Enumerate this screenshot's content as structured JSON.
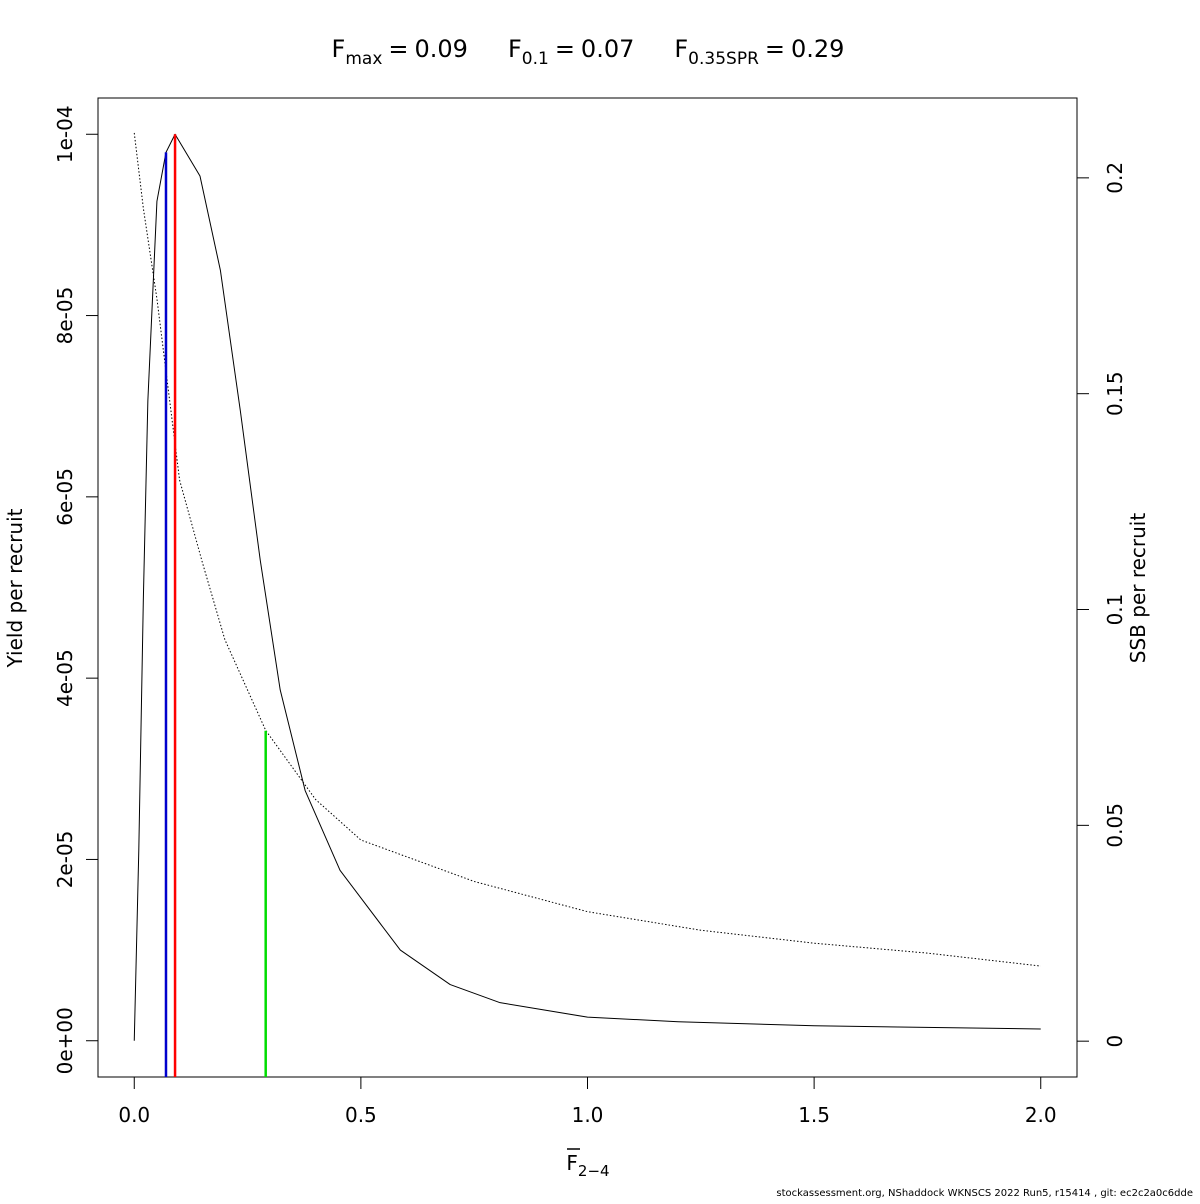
{
  "chart_data": {
    "type": "line",
    "reference_lines": [
      {
        "symbol": "F",
        "subscript": "max",
        "sign": "=",
        "value": 0.09,
        "color": "#ff0000",
        "top": 0.0001
      },
      {
        "symbol": "F",
        "subscript": "0.1",
        "sign": "=",
        "value": 0.07,
        "color": "#0000cd",
        "top": 9.8e-05
      },
      {
        "symbol": "F",
        "subscript": "0.35SPR",
        "sign": "=",
        "value": 0.29,
        "color": "#00dd00",
        "top": 3.42e-05
      }
    ],
    "xlabel": {
      "symbol": "F",
      "subscript": "2−4"
    },
    "ylabel": "Yield per recruit",
    "y2label": "SSB per recruit",
    "footer": "stockassessment.org, NShaddock  WKNSCS  2022  Run5, r15414 , git: ec2c2a0c6dde",
    "xlim": [
      -0.08,
      2.08
    ],
    "ylim": [
      -4e-06,
      0.000104
    ],
    "y2lim": [
      -0.0083,
      0.2185
    ],
    "xticks": [
      {
        "value": 0,
        "label": "0.0"
      },
      0.5,
      {
        "value": 1,
        "label": "1.0"
      },
      1.5,
      {
        "value": 2,
        "label": "2.0"
      }
    ],
    "yticks": [
      {
        "value": 0,
        "label": "0e+00"
      },
      {
        "value": 2e-05,
        "label": "2e-05"
      },
      {
        "value": 4e-05,
        "label": "4e-05"
      },
      {
        "value": 6e-05,
        "label": "6e-05"
      },
      {
        "value": 8e-05,
        "label": "8e-05"
      },
      {
        "value": 0.0001,
        "label": "1e-04"
      }
    ],
    "y2ticks": [
      0,
      0.05,
      0.1,
      0.15,
      0.2
    ],
    "series": [
      {
        "color": "#000000",
        "line_style": "solid",
        "x": [
          0,
          0.01,
          0.02,
          0.03,
          0.05,
          0.07,
          0.09,
          0.145,
          0.19,
          0.234,
          0.278,
          0.322,
          0.377,
          0.454,
          0.587,
          0.697,
          0.807,
          1.0,
          1.2,
          1.5,
          2.0
        ],
        "values": [
          0,
          2.1e-05,
          4.86e-05,
          7.06e-05,
          9.26e-05,
          9.8e-05,
          0.0001,
          9.54e-05,
          8.5e-05,
          6.95e-05,
          5.3e-05,
          3.87e-05,
          2.76e-05,
          1.88e-05,
          1e-05,
          6.2e-06,
          4.2e-06,
          2.6e-06,
          2.1e-06,
          1.65e-06,
          1.3e-06
        ]
      },
      {
        "color": "#000000",
        "line_style": "dotted",
        "axis": "y2",
        "x": [
          0,
          0.02,
          0.05,
          0.1,
          0.15,
          0.2,
          0.29,
          0.4,
          0.5,
          0.75,
          1.0,
          1.25,
          1.5,
          1.75,
          2.0
        ],
        "values": [
          0.2104,
          0.193,
          0.172,
          0.13,
          0.111,
          0.093,
          0.072,
          0.056,
          0.0466,
          0.037,
          0.03,
          0.0257,
          0.0227,
          0.0204,
          0.0174
        ]
      }
    ]
  }
}
